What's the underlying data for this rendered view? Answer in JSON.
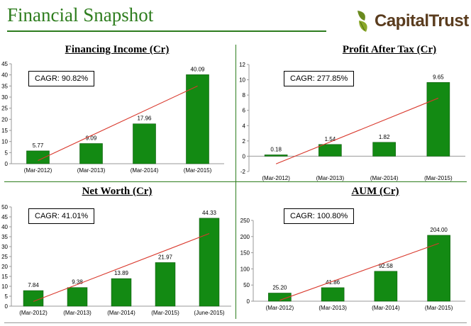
{
  "header": {
    "title": "Financial Snapshot",
    "logo_text": "CapitalTrust"
  },
  "colors": {
    "title_green": "#2e7d1e",
    "bar_green": "#138a13",
    "trend_red": "#d9382c",
    "logo_brown": "#5a3c1e"
  },
  "panels": {
    "financing_income": {
      "title": "Financing Income (Cr)",
      "cagr": "CAGR: 90.82%"
    },
    "profit_after_tax": {
      "title": "Profit After Tax (Cr)",
      "cagr": "CAGR: 277.85%"
    },
    "net_worth": {
      "title": "Net Worth (Cr)",
      "cagr": "CAGR: 41.01%"
    },
    "aum": {
      "title": "AUM (Cr)",
      "cagr": "CAGR: 100.80%"
    }
  },
  "chart_data": [
    {
      "type": "bar",
      "title": "Financing Income (Cr)",
      "categories": [
        "(Mar-2012)",
        "(Mar-2013)",
        "(Mar-2014)",
        "(Mar-2015)"
      ],
      "values": [
        5.77,
        9.09,
        17.96,
        40.09
      ],
      "value_labels": [
        "5.77",
        "9.09",
        "17.96",
        "40.09"
      ],
      "ylim": [
        0,
        45
      ],
      "yticks": [
        0,
        5,
        10,
        15,
        20,
        25,
        30,
        35,
        40,
        45
      ],
      "trendline": true,
      "annotation": "CAGR: 90.82%"
    },
    {
      "type": "bar",
      "title": "Profit After Tax (Cr)",
      "categories": [
        "(Mar-2012)",
        "(Mar-2013)",
        "(Mar-2014)",
        "(Mar-2015)"
      ],
      "values": [
        0.18,
        1.54,
        1.82,
        9.65
      ],
      "value_labels": [
        "0.18",
        "1.54",
        "1.82",
        "9.65"
      ],
      "ylim": [
        -2,
        12
      ],
      "yticks": [
        -2,
        0,
        2,
        4,
        6,
        8,
        10,
        12
      ],
      "trendline": true,
      "annotation": "CAGR: 277.85%"
    },
    {
      "type": "bar",
      "title": "Net Worth (Cr)",
      "categories": [
        "(Mar-2012)",
        "(Mar-2013)",
        "(Mar-2014)",
        "(Mar-2015)",
        "(June-2015)"
      ],
      "values": [
        7.84,
        9.38,
        13.89,
        21.97,
        44.33
      ],
      "value_labels": [
        "7.84",
        "9.38",
        "13.89",
        "21.97",
        "44.33"
      ],
      "ylim": [
        0,
        50
      ],
      "yticks": [
        0,
        5,
        10,
        15,
        20,
        25,
        30,
        35,
        40,
        45,
        50
      ],
      "trendline": true,
      "annotation": "CAGR: 41.01%"
    },
    {
      "type": "bar",
      "title": "AUM (Cr)",
      "categories": [
        "(Mar-2012)",
        "(Mar-2013)",
        "(Mar-2014)",
        "(Mar-2015)"
      ],
      "values": [
        25.2,
        41.86,
        92.58,
        204.0
      ],
      "value_labels": [
        "25.20",
        "41.86",
        "92.58",
        "204.00"
      ],
      "ylim": [
        0,
        250
      ],
      "yticks": [
        0,
        50,
        100,
        150,
        200,
        250
      ],
      "trendline": true,
      "annotation": "CAGR: 100.80%"
    }
  ]
}
